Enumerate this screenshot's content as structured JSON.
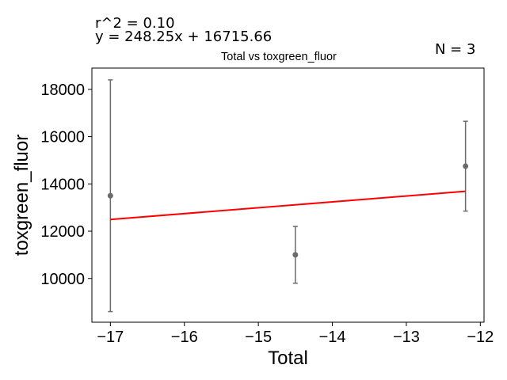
{
  "chart_data": {
    "type": "scatter",
    "title": "Total vs toxgreen_fluor",
    "xlabel": "Total",
    "ylabel": "toxgreen_fluor",
    "annotations": {
      "r2": "r^2 = 0.10",
      "equation": "y = 248.25x + 16715.66",
      "n": "N = 3"
    },
    "xlim": [
      -17.25,
      -11.95
    ],
    "ylim": [
      8150,
      18900
    ],
    "xticks": [
      -17,
      -16,
      -15,
      -14,
      -13,
      -12
    ],
    "xtick_labels": [
      "−17",
      "−16",
      "−15",
      "−14",
      "−13",
      "−12"
    ],
    "yticks": [
      10000,
      12000,
      14000,
      16000,
      18000
    ],
    "ytick_labels": [
      "10000",
      "12000",
      "14000",
      "16000",
      "18000"
    ],
    "points": [
      {
        "x": -17.0,
        "y": 13500,
        "err_low": 8600,
        "err_high": 18400
      },
      {
        "x": -14.5,
        "y": 11000,
        "err_low": 9800,
        "err_high": 12200
      },
      {
        "x": -12.2,
        "y": 14750,
        "err_low": 12850,
        "err_high": 16650
      }
    ],
    "fit_line": {
      "slope": 248.25,
      "intercept": 16715.66,
      "x_start": -17.0,
      "x_end": -12.2
    },
    "colors": {
      "points": "#6b6b6b",
      "fit": "#ff0000",
      "axes": "#000000"
    },
    "grid": false,
    "legend": "none"
  }
}
